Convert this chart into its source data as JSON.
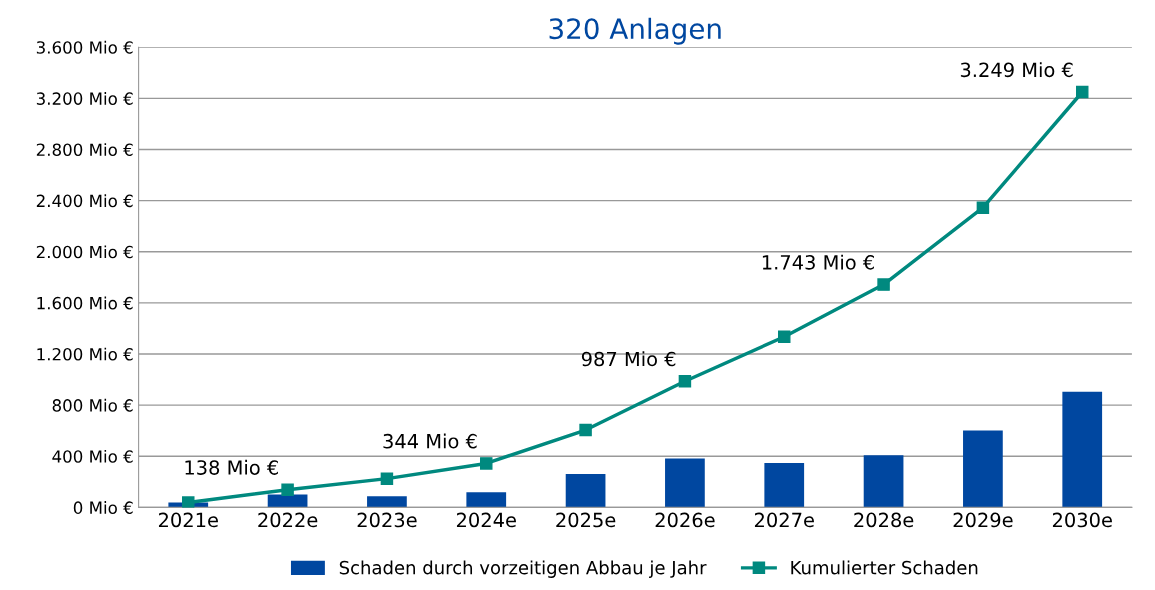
{
  "chart_data": {
    "type": "bar",
    "title": "320 Anlagen",
    "categories": [
      "2021e",
      "2022e",
      "2023e",
      "2024e",
      "2025e",
      "2026e",
      "2027e",
      "2028e",
      "2029e",
      "2030e"
    ],
    "series": [
      {
        "name": "Schaden durch vorzeitigen Abbau je Jahr",
        "color": "#0047a0",
        "values": [
          38,
          100,
          87,
          119,
          261,
          382,
          348,
          408,
          602,
          904
        ]
      },
      {
        "name": "Kumulierter Schaden",
        "type": "line",
        "color": "#00897f",
        "marker": "square",
        "values": [
          38,
          138,
          225,
          344,
          605,
          987,
          1335,
          1743,
          2345,
          3249
        ],
        "value_labels": [
          null,
          "138 Mio €",
          null,
          "344 Mio €",
          null,
          "987 Mio €",
          null,
          "1.743 Mio €",
          null,
          "3.249 Mio €"
        ]
      }
    ],
    "ylim": [
      0,
      3600
    ],
    "yticks": [
      {
        "value": 0,
        "label": "0 Mio €"
      },
      {
        "value": 400,
        "label": "400 Mio €"
      },
      {
        "value": 800,
        "label": "800 Mio €"
      },
      {
        "value": 1200,
        "label": "1.200 Mio €"
      },
      {
        "value": 1600,
        "label": "1.600 Mio €"
      },
      {
        "value": 2000,
        "label": "2.000 Mio €"
      },
      {
        "value": 2400,
        "label": "2.400 Mio €"
      },
      {
        "value": 2800,
        "label": "2.800 Mio €"
      },
      {
        "value": 3200,
        "label": "3.200 Mio €"
      },
      {
        "value": 3600,
        "label": "3.600 Mio €"
      }
    ],
    "grid": "y",
    "legend": "bottom"
  }
}
